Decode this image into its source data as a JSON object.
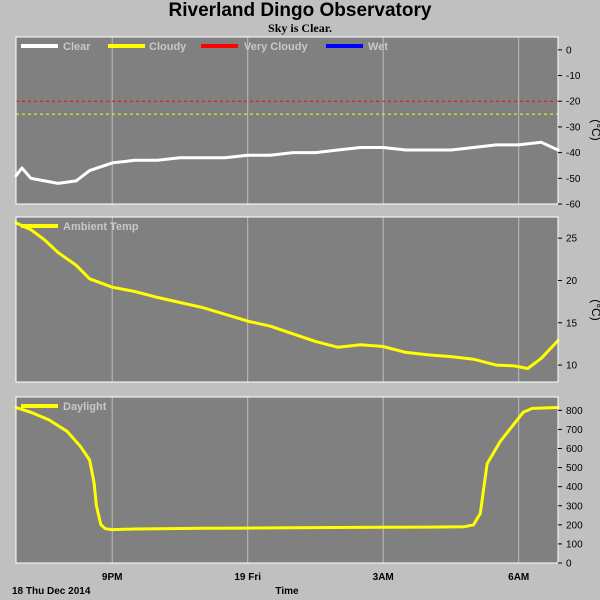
{
  "title": "Riverland Dingo Observatory",
  "subtitle": "Sky is Clear.",
  "footer": {
    "date": "18 Thu Dec 2014",
    "xlabel": "Time"
  },
  "colors": {
    "clear": "#ffffff",
    "cloudy": "#ffff00",
    "very_cloudy": "#ff0000",
    "wet": "#0000ff",
    "plot_bg": "#808080"
  },
  "x_ticks": [
    "9PM",
    "19 Fri",
    "3AM",
    "6AM"
  ],
  "chart_data": [
    {
      "type": "line",
      "panel": "sky",
      "legend": [
        "Clear",
        "Cloudy",
        "Very Cloudy",
        "Wet"
      ],
      "ylabel": "(°C)",
      "ylim": [
        -60,
        5
      ],
      "yticks": [
        0,
        -10,
        -20,
        -30,
        -40,
        -50,
        -60
      ],
      "thresholds": [
        {
          "name": "Very Cloudy",
          "value": -20,
          "color": "#ff0000"
        },
        {
          "name": "Cloudy",
          "value": -25,
          "color": "#ffff00"
        }
      ],
      "series": [
        {
          "name": "Clear",
          "color": "#ffffff",
          "x": [
            18.87,
            19.0,
            19.2,
            19.5,
            19.8,
            20.2,
            20.5,
            21.0,
            21.5,
            22.0,
            22.5,
            23.0,
            23.5,
            24.0,
            24.5,
            25.0,
            25.5,
            26.0,
            26.5,
            27.0,
            27.5,
            28.0,
            28.5,
            29.0,
            29.5,
            30.0,
            30.5,
            30.87
          ],
          "y": [
            -49,
            -46,
            -50,
            -51,
            -52,
            -51,
            -47,
            -44,
            -43,
            -43,
            -42,
            -42,
            -42,
            -41,
            -41,
            -40,
            -40,
            -39,
            -38,
            -38,
            -39,
            -39,
            -39,
            -38,
            -37,
            -37,
            -36,
            -39
          ]
        }
      ]
    },
    {
      "type": "line",
      "panel": "ambient",
      "legend": [
        "Ambient Temp"
      ],
      "ylim": [
        8,
        27.5
      ],
      "yticks": [
        10,
        15,
        20,
        25
      ],
      "series": [
        {
          "name": "Ambient Temp",
          "color": "#ffff00",
          "x": [
            18.87,
            19.2,
            19.5,
            19.8,
            20.2,
            20.5,
            21.0,
            21.5,
            22.0,
            22.5,
            23.0,
            23.5,
            24.0,
            24.5,
            25.0,
            25.5,
            26.0,
            26.5,
            27.0,
            27.5,
            28.0,
            28.5,
            29.0,
            29.5,
            29.9,
            30.2,
            30.5,
            30.87
          ],
          "y": [
            26.8,
            26.0,
            24.8,
            23.3,
            21.8,
            20.2,
            19.2,
            18.7,
            18.0,
            17.4,
            16.8,
            16.0,
            15.2,
            14.6,
            13.7,
            12.8,
            12.1,
            12.4,
            12.2,
            11.5,
            11.2,
            11.0,
            10.7,
            10.0,
            9.9,
            9.6,
            10.8,
            12.9
          ]
        }
      ]
    },
    {
      "type": "line",
      "panel": "daylight",
      "legend": [
        "Daylight"
      ],
      "ylim": [
        0,
        870
      ],
      "yticks": [
        0,
        100,
        200,
        300,
        400,
        500,
        600,
        700,
        800
      ],
      "series": [
        {
          "name": "Daylight",
          "color": "#ffff00",
          "x": [
            18.87,
            19.2,
            19.6,
            20.0,
            20.3,
            20.5,
            20.6,
            20.65,
            20.75,
            20.85,
            21.0,
            21.5,
            22.0,
            23.0,
            24.0,
            25.0,
            26.0,
            27.0,
            28.0,
            28.8,
            29.0,
            29.15,
            29.3,
            29.6,
            29.9,
            30.1,
            30.3,
            30.87
          ],
          "y": [
            815,
            790,
            750,
            690,
            610,
            540,
            420,
            300,
            200,
            180,
            175,
            178,
            180,
            182,
            183,
            185,
            186,
            187,
            188,
            190,
            200,
            260,
            520,
            640,
            730,
            790,
            810,
            815
          ]
        }
      ]
    }
  ]
}
